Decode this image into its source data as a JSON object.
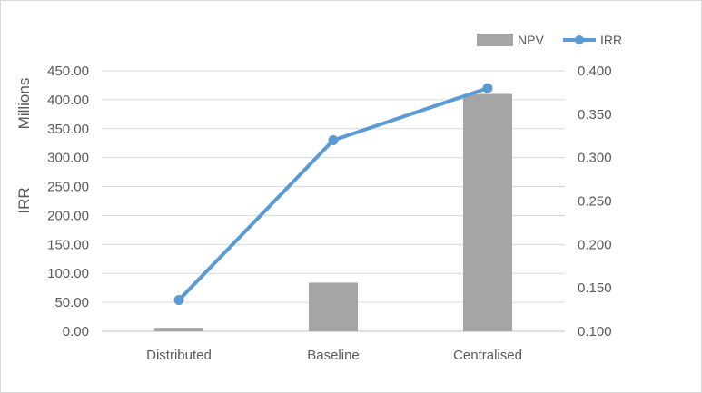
{
  "chart_data": {
    "type": "bar+line",
    "categories": [
      "Distributed",
      "Baseline",
      "Centralised"
    ],
    "series": [
      {
        "name": "NPV",
        "type": "bar",
        "axis": "left",
        "values": [
          6,
          84,
          410
        ],
        "color": "#a5a5a5"
      },
      {
        "name": "IRR",
        "type": "line",
        "axis": "right",
        "values": [
          0.136,
          0.32,
          0.38
        ],
        "color": "#5b9bd5"
      }
    ],
    "y_left": {
      "label": "IRR",
      "units_label": "Millions",
      "ylim": [
        0,
        450
      ],
      "ticks": [
        "0.00",
        "50.00",
        "100.00",
        "150.00",
        "200.00",
        "250.00",
        "300.00",
        "350.00",
        "400.00",
        "450.00"
      ]
    },
    "y_right": {
      "ylim": [
        0.1,
        0.4
      ],
      "ticks": [
        "0.100",
        "0.150",
        "0.200",
        "0.250",
        "0.300",
        "0.350",
        "0.400"
      ]
    },
    "grid": true,
    "legend": "top-right"
  }
}
